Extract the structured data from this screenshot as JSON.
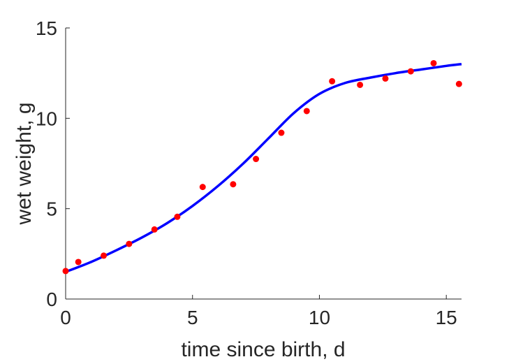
{
  "chart_data": {
    "type": "scatter",
    "xlabel": "time since birth, d",
    "ylabel": "wet weight, g",
    "xlim": [
      0,
      15.6
    ],
    "ylim": [
      0,
      15
    ],
    "xticks": [
      0,
      5,
      10,
      15
    ],
    "yticks": [
      0,
      5,
      10,
      15
    ],
    "grid": false,
    "series": [
      {
        "kind": "points",
        "color": "#ff0000",
        "x": [
          0,
          0.5,
          1.5,
          2.5,
          3.5,
          4.4,
          5.4,
          6.6,
          7.5,
          8.5,
          9.5,
          10.5,
          11.6,
          12.6,
          13.6,
          14.5,
          15.5
        ],
        "y": [
          1.55,
          2.05,
          2.4,
          3.05,
          3.85,
          4.55,
          6.2,
          6.35,
          7.75,
          9.2,
          10.4,
          12.05,
          11.85,
          12.2,
          12.6,
          13.05,
          11.9
        ]
      },
      {
        "kind": "line",
        "color": "#0000ff",
        "x": [
          0,
          1,
          2,
          3,
          4,
          5,
          6,
          7,
          8,
          9,
          10,
          11,
          12,
          13,
          14,
          15,
          15.6
        ],
        "y": [
          1.5,
          2.05,
          2.7,
          3.4,
          4.2,
          5.15,
          6.25,
          7.5,
          8.9,
          10.3,
          11.35,
          11.95,
          12.25,
          12.5,
          12.7,
          12.9,
          13.0
        ]
      }
    ]
  }
}
